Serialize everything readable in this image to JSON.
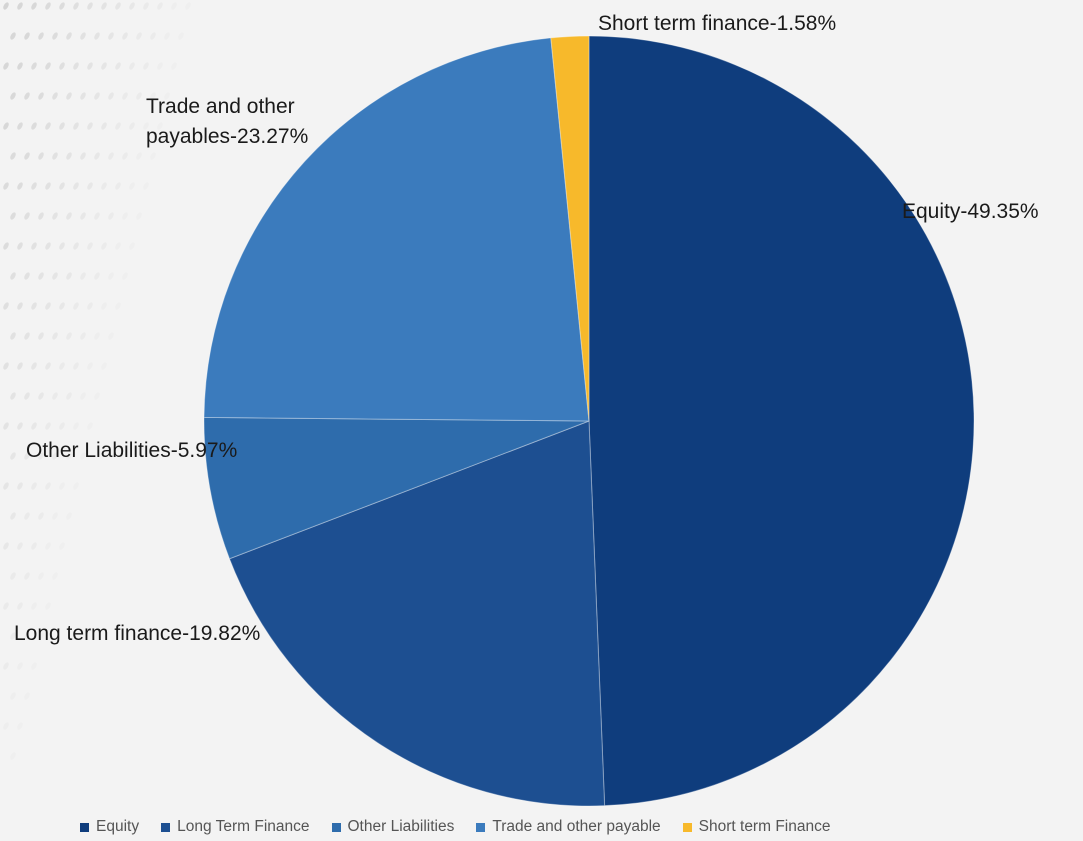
{
  "chart_data": {
    "type": "pie",
    "slices": [
      {
        "name": "Equity",
        "label": "Equity-49.35%",
        "value": 49.35,
        "color": "#0f3d7d"
      },
      {
        "name": "Long Term Finance",
        "label": "Long term finance-19.82%",
        "value": 19.82,
        "color": "#1d4f91"
      },
      {
        "name": "Other Liabilities",
        "label": "Other Liabilities-5.97%",
        "value": 5.97,
        "color": "#2e6cac"
      },
      {
        "name": "Trade and other payable",
        "label": "Trade and other payables-23.27%",
        "label_lines": [
          "Trade and other",
          "payables-23.27%"
        ],
        "value": 23.27,
        "color": "#3b7bbd"
      },
      {
        "name": "Short term Finance",
        "label": "Short term finance-1.58%",
        "value": 1.58,
        "color": "#f7b92b"
      }
    ],
    "legend": [
      "Equity",
      "Long Term Finance",
      "Other Liabilities",
      "Trade and other payable",
      "Short term Finance"
    ],
    "legend_position": "bottom"
  }
}
